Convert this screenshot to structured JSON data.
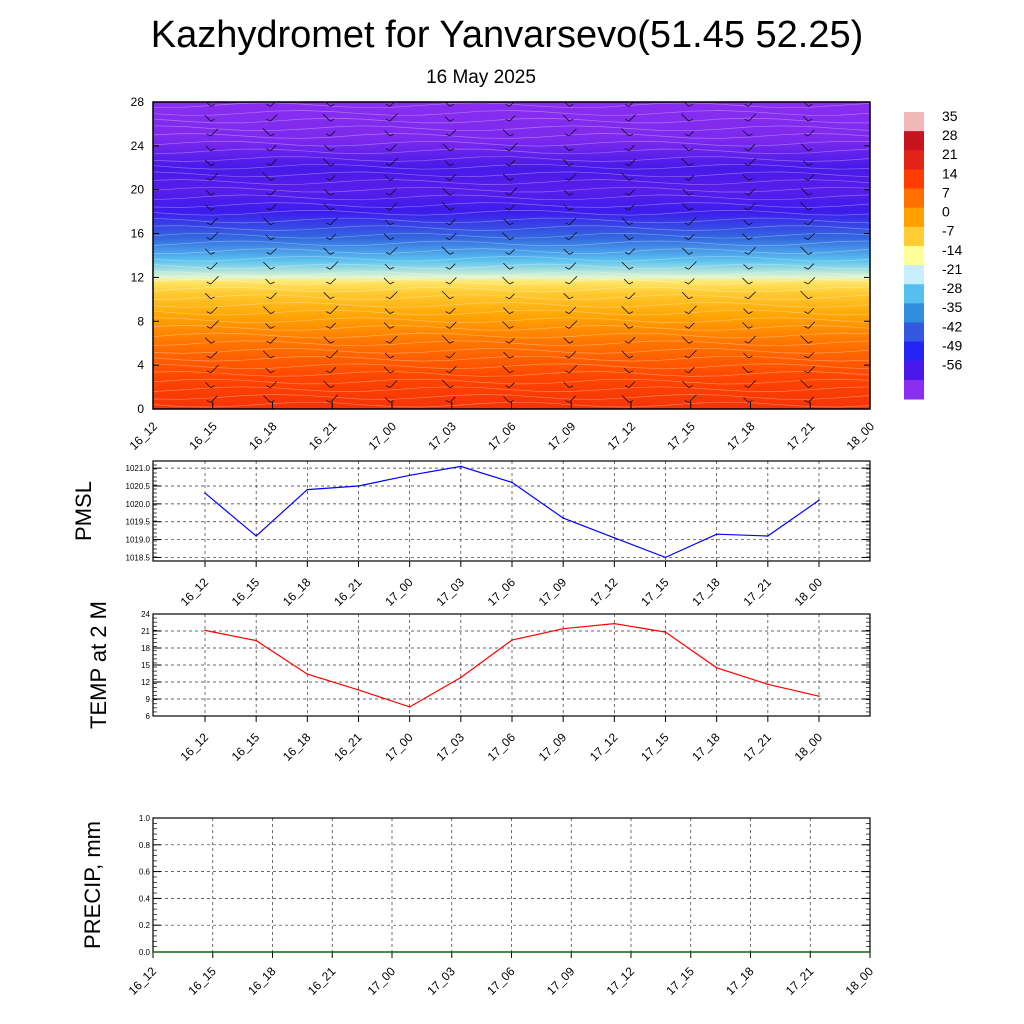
{
  "title": "Kazhydromet for Yanvarsevo(51.45 52.25)",
  "subtitle": "16 May 2025",
  "chart_data": [
    {
      "type": "heatmap",
      "panel": "cross-section",
      "x_ticks": [
        "16_12",
        "16_15",
        "16_18",
        "16_21",
        "17_00",
        "17_03",
        "17_06",
        "17_09",
        "17_12",
        "17_15",
        "17_18",
        "17_21",
        "18_00"
      ],
      "y_ticks": [
        0,
        4,
        8,
        12,
        16,
        20,
        24,
        28
      ],
      "ylim": [
        0,
        28
      ],
      "colorbar_labels": [
        35,
        28,
        21,
        14,
        7,
        0,
        -7,
        -14,
        -21,
        -28,
        -35,
        -42,
        -49,
        -56
      ],
      "colorbar_colors": [
        "#f2b7b7",
        "#c8141e",
        "#e2231a",
        "#ff3c00",
        "#ff7000",
        "#ffa200",
        "#ffcc33",
        "#ffff9a",
        "#c8eeff",
        "#55c0f0",
        "#2f8fdc",
        "#3558e0",
        "#2424f5",
        "#4a18e8",
        "#8a2ef0"
      ],
      "profile": [
        {
          "y": 0,
          "v": 20
        },
        {
          "y": 3,
          "v": 16
        },
        {
          "y": 6,
          "v": 10
        },
        {
          "y": 8.5,
          "v": 3
        },
        {
          "y": 10.5,
          "v": -3
        },
        {
          "y": 11.6,
          "v": -7
        },
        {
          "y": 12,
          "v": -14
        },
        {
          "y": 13.5,
          "v": -24
        },
        {
          "y": 15.5,
          "v": -36
        },
        {
          "y": 18,
          "v": -50
        },
        {
          "y": 20,
          "v": -54
        },
        {
          "y": 22,
          "v": -52
        },
        {
          "y": 24.5,
          "v": -58
        },
        {
          "y": 28,
          "v": -62
        }
      ],
      "grid": true
    },
    {
      "type": "line",
      "ylabel": "PMSL",
      "categories": [
        "16_12",
        "16_15",
        "16_18",
        "16_21",
        "17_00",
        "17_03",
        "17_06",
        "17_09",
        "17_12",
        "17_15",
        "17_18",
        "17_21",
        "18_00"
      ],
      "series": [
        {
          "values": [
            1020.3,
            1019.1,
            1020.4,
            1020.5,
            1020.8,
            1021.05,
            1020.6,
            1019.6,
            1019.05,
            1018.5,
            1019.15,
            1019.1,
            1020.1
          ]
        }
      ],
      "color": "#0000ff",
      "ylim": [
        1018.4,
        1021.2
      ],
      "y_ticks": [
        "1018.5",
        "1019.0",
        "1019.5",
        "1020.0",
        "1020.5",
        "1021.0"
      ],
      "grid": true
    },
    {
      "type": "line",
      "ylabel": "TEMP at 2 M",
      "categories": [
        "16_12",
        "16_15",
        "16_18",
        "16_21",
        "17_00",
        "17_03",
        "17_06",
        "17_09",
        "17_12",
        "17_15",
        "17_18",
        "17_21",
        "18_00"
      ],
      "series": [
        {
          "values": [
            21.1,
            19.3,
            13.4,
            10.6,
            7.6,
            12.8,
            19.4,
            21.4,
            22.3,
            20.8,
            14.5,
            11.6,
            9.5
          ]
        }
      ],
      "color": "#ff0000",
      "ylim": [
        6,
        24
      ],
      "y_ticks": [
        "6",
        "9",
        "12",
        "15",
        "18",
        "21",
        "24"
      ],
      "grid": true
    },
    {
      "type": "line",
      "ylabel": "PRECIP, mm",
      "categories": [
        "16_12",
        "16_15",
        "16_18",
        "16_21",
        "17_00",
        "17_03",
        "17_06",
        "17_09",
        "17_12",
        "17_15",
        "17_18",
        "17_21",
        "18_00"
      ],
      "series": [
        {
          "values": [
            0,
            0,
            0,
            0,
            0,
            0,
            0,
            0,
            0,
            0,
            0,
            0,
            0
          ]
        }
      ],
      "color": "#006400",
      "ylim": [
        0,
        1
      ],
      "y_ticks": [
        "0.0",
        "0.2",
        "0.4",
        "0.6",
        "0.8",
        "1.0"
      ],
      "grid": true
    }
  ]
}
